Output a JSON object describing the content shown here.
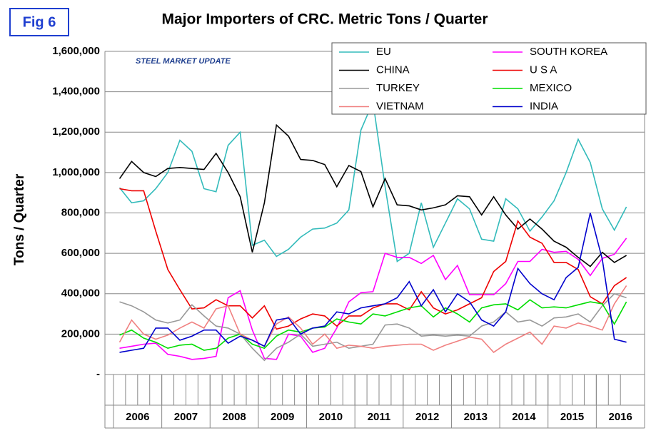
{
  "chart_data": {
    "type": "line",
    "badge": "Fig 6",
    "title": "Major Importers of CRC. Metric Tons / Quarter",
    "logo": "STEEL MARKET UPDATE",
    "y_label": "Tons / Quarter",
    "years": [
      "2006",
      "2007",
      "2008",
      "2009",
      "2010",
      "2011",
      "2012",
      "2013",
      "2014",
      "2015",
      "2016"
    ],
    "categories": [
      null,
      null,
      null,
      null,
      null,
      null,
      null,
      null,
      null,
      null,
      null,
      null,
      null,
      null,
      null,
      null,
      null,
      null,
      null,
      null,
      null,
      null,
      null,
      null,
      null,
      null,
      null,
      null,
      null,
      null,
      null,
      null,
      null,
      null,
      null,
      null,
      null,
      null,
      null,
      null,
      null,
      null,
      null
    ],
    "ylim": [
      0,
      1600000
    ],
    "yticks": [
      {
        "value": 0,
        "label": "-"
      },
      {
        "value": 200000,
        "label": "200,000"
      },
      {
        "value": 400000,
        "label": "400,000"
      },
      {
        "value": 600000,
        "label": "600,000"
      },
      {
        "value": 800000,
        "label": "800,000"
      },
      {
        "value": 1000000,
        "label": "1,000,000"
      },
      {
        "value": 1200000,
        "label": "1,200,000"
      },
      {
        "value": 1400000,
        "label": "1,400,000"
      },
      {
        "value": 1600000,
        "label": "1,600,000"
      }
    ],
    "grid": true,
    "legend": "top-right",
    "series": [
      {
        "name": "EU",
        "color": "#33bbbb",
        "values": [
          925000,
          850000,
          860000,
          920000,
          1000000,
          1160000,
          1105000,
          920000,
          905000,
          1135000,
          1200000,
          640000,
          665000,
          585000,
          620000,
          680000,
          720000,
          725000,
          750000,
          815000,
          1210000,
          1350000,
          930000,
          560000,
          600000,
          850000,
          630000,
          750000,
          870000,
          820000,
          670000,
          660000,
          870000,
          820000,
          710000,
          780000,
          860000,
          1000000,
          1165000,
          1050000,
          820000,
          715000,
          830000
        ]
      },
      {
        "name": "SOUTH KOREA",
        "color": "#ff00ff",
        "values": [
          130000,
          140000,
          150000,
          155000,
          100000,
          90000,
          75000,
          80000,
          90000,
          380000,
          415000,
          220000,
          80000,
          75000,
          200000,
          190000,
          110000,
          130000,
          230000,
          360000,
          405000,
          410000,
          600000,
          580000,
          580000,
          550000,
          590000,
          470000,
          540000,
          395000,
          395000,
          395000,
          450000,
          560000,
          560000,
          620000,
          605000,
          610000,
          570000,
          490000,
          575000,
          595000,
          675000
        ]
      },
      {
        "name": "CHINA",
        "color": "#000000",
        "values": [
          970000,
          1055000,
          1000000,
          980000,
          1020000,
          1025000,
          1020000,
          1015000,
          1095000,
          1000000,
          880000,
          605000,
          850000,
          1235000,
          1180000,
          1065000,
          1060000,
          1040000,
          930000,
          1035000,
          1005000,
          830000,
          970000,
          840000,
          835000,
          815000,
          825000,
          840000,
          885000,
          880000,
          790000,
          880000,
          790000,
          720000,
          770000,
          720000,
          660000,
          630000,
          580000,
          535000,
          605000,
          555000,
          590000
        ]
      },
      {
        "name": "U S A",
        "color": "#ee0000",
        "values": [
          920000,
          910000,
          910000,
          710000,
          520000,
          420000,
          325000,
          330000,
          370000,
          340000,
          340000,
          280000,
          340000,
          225000,
          240000,
          275000,
          300000,
          290000,
          240000,
          290000,
          290000,
          330000,
          350000,
          350000,
          320000,
          410000,
          330000,
          300000,
          320000,
          350000,
          380000,
          510000,
          560000,
          760000,
          680000,
          650000,
          555000,
          555000,
          520000,
          385000,
          350000,
          440000,
          480000
        ]
      },
      {
        "name": "TURKEY",
        "color": "#999999",
        "values": [
          360000,
          340000,
          310000,
          270000,
          255000,
          270000,
          345000,
          290000,
          240000,
          230000,
          200000,
          130000,
          70000,
          130000,
          160000,
          200000,
          140000,
          150000,
          160000,
          130000,
          140000,
          150000,
          245000,
          250000,
          230000,
          190000,
          195000,
          190000,
          195000,
          190000,
          240000,
          260000,
          310000,
          260000,
          270000,
          240000,
          280000,
          285000,
          300000,
          260000,
          340000,
          400000,
          380000
        ]
      },
      {
        "name": "MEXICO",
        "color": "#00dd00",
        "values": [
          195000,
          220000,
          180000,
          160000,
          130000,
          145000,
          150000,
          120000,
          130000,
          180000,
          200000,
          150000,
          130000,
          190000,
          220000,
          210000,
          230000,
          235000,
          275000,
          260000,
          250000,
          300000,
          290000,
          310000,
          330000,
          340000,
          285000,
          330000,
          300000,
          260000,
          330000,
          345000,
          350000,
          320000,
          370000,
          330000,
          335000,
          330000,
          345000,
          360000,
          350000,
          250000,
          360000
        ]
      },
      {
        "name": "VIETNAM",
        "color": "#f08080",
        "values": [
          160000,
          270000,
          200000,
          175000,
          195000,
          230000,
          260000,
          230000,
          325000,
          340000,
          200000,
          170000,
          140000,
          250000,
          285000,
          230000,
          150000,
          200000,
          130000,
          145000,
          140000,
          130000,
          140000,
          145000,
          150000,
          150000,
          120000,
          145000,
          165000,
          185000,
          175000,
          110000,
          150000,
          180000,
          210000,
          150000,
          240000,
          230000,
          255000,
          240000,
          220000,
          350000,
          440000
        ]
      },
      {
        "name": "INDIA",
        "color": "#0000cc",
        "values": [
          110000,
          120000,
          130000,
          230000,
          230000,
          170000,
          190000,
          220000,
          220000,
          155000,
          190000,
          170000,
          140000,
          270000,
          280000,
          200000,
          230000,
          240000,
          310000,
          300000,
          330000,
          340000,
          350000,
          380000,
          460000,
          340000,
          420000,
          310000,
          400000,
          360000,
          270000,
          240000,
          310000,
          525000,
          450000,
          400000,
          370000,
          480000,
          530000,
          800000,
          570000,
          175000,
          160000
        ]
      }
    ]
  }
}
